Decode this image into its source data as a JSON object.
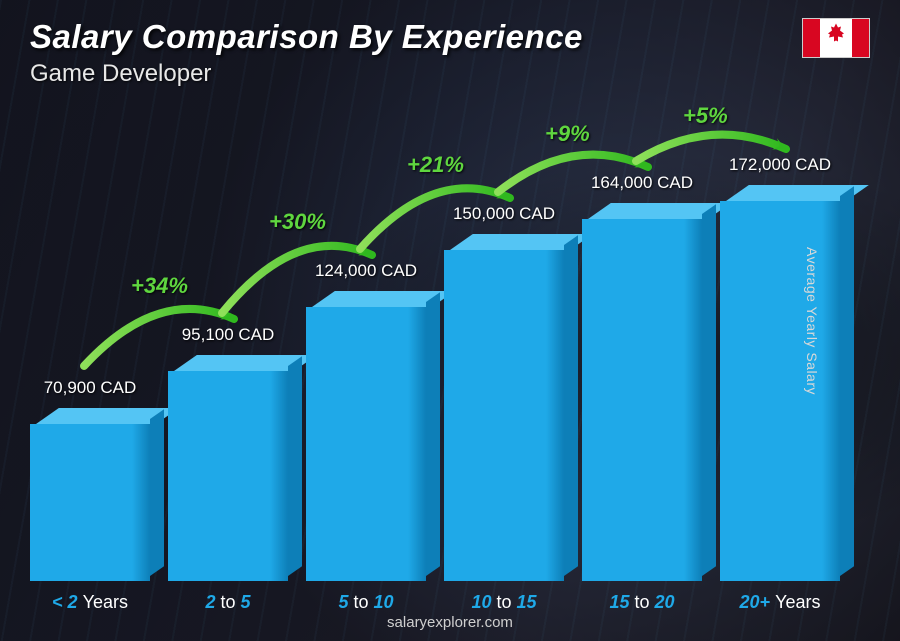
{
  "header": {
    "title": "Salary Comparison By Experience",
    "subtitle": "Game Developer",
    "flag_country": "Canada",
    "flag_red": "#d80621"
  },
  "chart": {
    "type": "bar",
    "currency": "CAD",
    "max_value": 172000,
    "bar_front_color": "#1fa9e8",
    "bar_top_color": "#54c5f4",
    "bar_side_color": "#0d7fb8",
    "pct_color": "#5fd63f",
    "label_num_color": "#1fa9e8",
    "label_txt_color": "#ffffff",
    "background_dark": "#1a1a1a",
    "bars": [
      {
        "label_html": "<span class='num'>&lt; 2</span> <span class='txt'>Years</span>",
        "value": 70900,
        "value_label": "70,900 CAD",
        "pct_from_prev": null
      },
      {
        "label_html": "<span class='num'>2</span> <span class='txt'>to</span> <span class='num'>5</span>",
        "value": 95100,
        "value_label": "95,100 CAD",
        "pct_from_prev": "+34%"
      },
      {
        "label_html": "<span class='num'>5</span> <span class='txt'>to</span> <span class='num'>10</span>",
        "value": 124000,
        "value_label": "124,000 CAD",
        "pct_from_prev": "+30%"
      },
      {
        "label_html": "<span class='num'>10</span> <span class='txt'>to</span> <span class='num'>15</span>",
        "value": 150000,
        "value_label": "150,000 CAD",
        "pct_from_prev": "+21%"
      },
      {
        "label_html": "<span class='num'>15</span> <span class='txt'>to</span> <span class='num'>20</span>",
        "value": 164000,
        "value_label": "164,000 CAD",
        "pct_from_prev": "+9%"
      },
      {
        "label_html": "<span class='num'>20+</span> <span class='txt'>Years</span>",
        "value": 172000,
        "value_label": "172,000 CAD",
        "pct_from_prev": "+5%"
      }
    ]
  },
  "side_label": "Average Yearly Salary",
  "footer": "salaryexplorer.com"
}
